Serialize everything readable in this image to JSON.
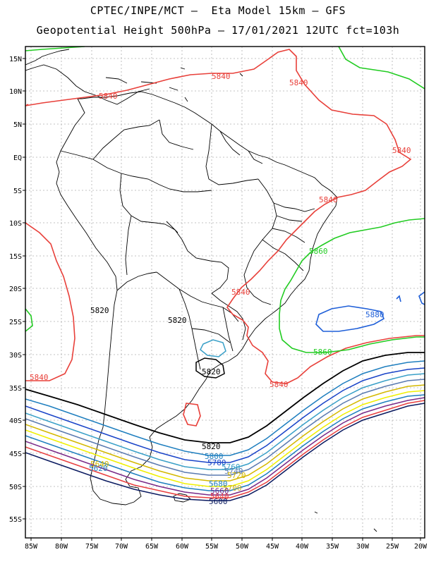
{
  "header": {
    "line1": "CPTEC/INPE/MCT –  Eta Model 15km – GFS",
    "line2": "Geopotential Height 500hPa – 17/01/2021 12UTC fct=103h"
  },
  "axes": {
    "lat_labels": [
      "15N",
      "10N",
      "5N",
      "EQ",
      "5S",
      "10S",
      "15S",
      "20S",
      "25S",
      "30S",
      "35S",
      "40S",
      "45S",
      "50S",
      "55S"
    ],
    "lon_labels": [
      "85W",
      "80W",
      "75W",
      "70W",
      "65W",
      "60W",
      "55W",
      "50W",
      "45W",
      "40W",
      "35W",
      "30W",
      "25W",
      "20W"
    ]
  },
  "contour_labels": {
    "c5840_a": "5840",
    "c5840_b": "5840",
    "c5840_c": "5840",
    "c5840_d": "5840",
    "c5840_e": "5840",
    "c5840_f": "5840",
    "c5840_g": "5840",
    "c5840_h": "5840",
    "c5860_a": "5860",
    "c5860_b": "5860",
    "c5880": "5880",
    "c5820_a": "5820",
    "c5820_b": "5820",
    "c5820_c": "5820",
    "c5820_d": "5820",
    "c5800": "5800",
    "c5780": "5780",
    "c5760": "5760",
    "c5740": "5740",
    "c5720": "5720",
    "c5700": "5700",
    "c5680": "5680",
    "c5660": "5660",
    "c5640": "5640",
    "c5620": "5620",
    "c5600": "5600",
    "w5640": "5640",
    "w5620": "5620"
  },
  "colors": {
    "c5840": "#e8403a",
    "c5860": "#22cc22",
    "c5880": "#1f5fd8",
    "c5820": "#000000",
    "c5800": "#1f7fbf",
    "c5780": "#1a44c8",
    "c5760": "#3aa0c8",
    "c5740": "#5a7ab0",
    "c5720": "#d4b800",
    "c5700": "#f0f000",
    "c5680": "#c8b020",
    "c5660": "#1f7fbf",
    "c5640": "#7a2a88",
    "c5620": "#e84040",
    "c5600": "#0a1a60"
  }
}
